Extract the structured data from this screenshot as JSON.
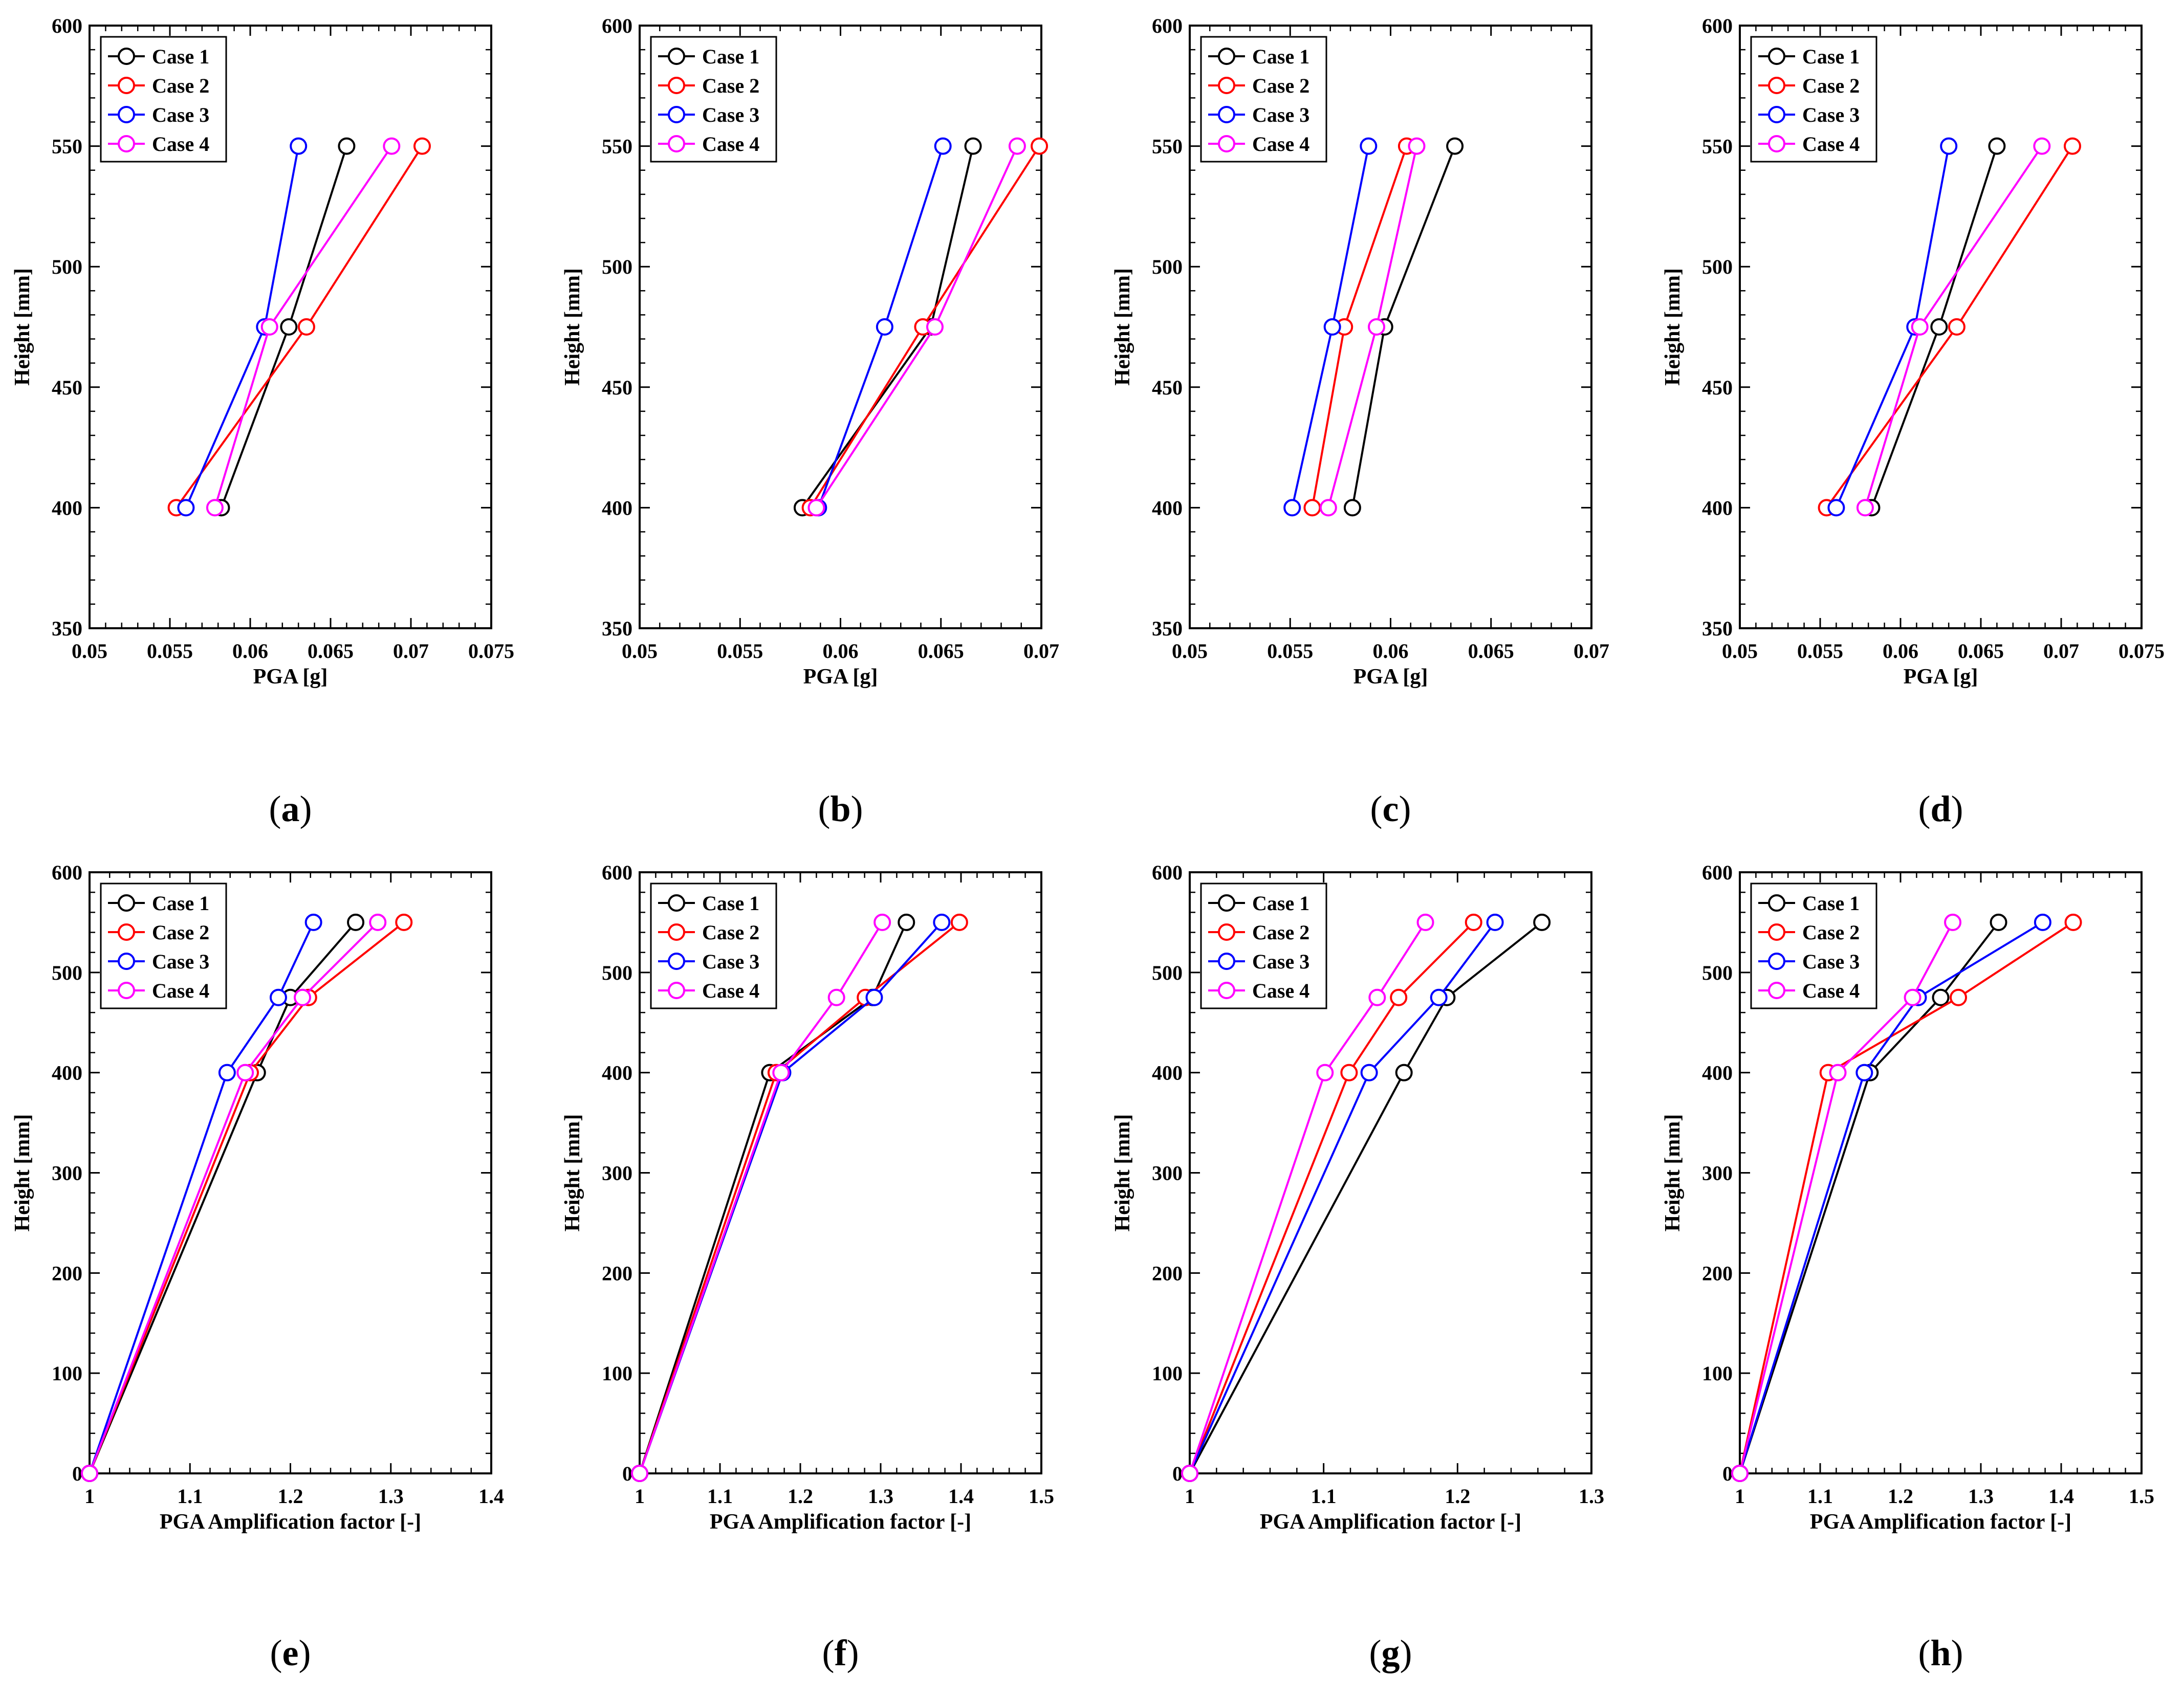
{
  "colors": {
    "case1": "#000000",
    "case2": "#ff0000",
    "case3": "#0000ff",
    "case4": "#ff00ff"
  },
  "chart_data": [
    {
      "panel": "(a)",
      "label_letter": "a",
      "type": "line",
      "xlabel": "PGA [g]",
      "ylabel": "Height [mm]",
      "xlim": [
        0.05,
        0.075
      ],
      "ylim": [
        350,
        600
      ],
      "xticks": [
        0.05,
        0.055,
        0.06,
        0.065,
        0.07,
        0.075
      ],
      "xtick_labels": [
        "0.05",
        "0.055",
        "0.06",
        "0.065",
        "0.07",
        "0.075"
      ],
      "yticks": [
        350,
        400,
        450,
        500,
        550,
        600
      ],
      "ytick_labels": [
        "350",
        "400",
        "450",
        "500",
        "550",
        "600"
      ],
      "legend": "top-left",
      "series": [
        {
          "name": "Case 1",
          "x": [
            0.0582,
            0.0624,
            0.066
          ],
          "y": [
            400,
            475,
            550
          ]
        },
        {
          "name": "Case 2",
          "x": [
            0.0554,
            0.0635,
            0.0707
          ],
          "y": [
            400,
            475,
            550
          ]
        },
        {
          "name": "Case 3",
          "x": [
            0.056,
            0.0609,
            0.063
          ],
          "y": [
            400,
            475,
            550
          ]
        },
        {
          "name": "Case 4",
          "x": [
            0.0578,
            0.0612,
            0.0688
          ],
          "y": [
            400,
            475,
            550
          ]
        }
      ]
    },
    {
      "panel": "(b)",
      "label_letter": "b",
      "type": "line",
      "xlabel": "PGA [g]",
      "ylabel": "Height [mm]",
      "xlim": [
        0.05,
        0.07
      ],
      "ylim": [
        350,
        600
      ],
      "xticks": [
        0.05,
        0.055,
        0.06,
        0.065,
        0.07
      ],
      "xtick_labels": [
        "0.05",
        "0.055",
        "0.06",
        "0.065",
        "0.07"
      ],
      "yticks": [
        350,
        400,
        450,
        500,
        550,
        600
      ],
      "ytick_labels": [
        "350",
        "400",
        "450",
        "500",
        "550",
        "600"
      ],
      "legend": "top-left",
      "series": [
        {
          "name": "Case 1",
          "x": [
            0.0581,
            0.0645,
            0.0666
          ],
          "y": [
            400,
            475,
            550
          ]
        },
        {
          "name": "Case 2",
          "x": [
            0.0585,
            0.0641,
            0.0699
          ],
          "y": [
            400,
            475,
            550
          ]
        },
        {
          "name": "Case 3",
          "x": [
            0.0589,
            0.0622,
            0.0651
          ],
          "y": [
            400,
            475,
            550
          ]
        },
        {
          "name": "Case 4",
          "x": [
            0.0588,
            0.0647,
            0.0688
          ],
          "y": [
            400,
            475,
            550
          ]
        }
      ]
    },
    {
      "panel": "(c)",
      "label_letter": "c",
      "type": "line",
      "xlabel": "PGA [g]",
      "ylabel": "Height [mm]",
      "xlim": [
        0.05,
        0.07
      ],
      "ylim": [
        350,
        600
      ],
      "xticks": [
        0.05,
        0.055,
        0.06,
        0.065,
        0.07
      ],
      "xtick_labels": [
        "0.05",
        "0.055",
        "0.06",
        "0.065",
        "0.07"
      ],
      "yticks": [
        350,
        400,
        450,
        500,
        550,
        600
      ],
      "ytick_labels": [
        "350",
        "400",
        "450",
        "500",
        "550",
        "600"
      ],
      "legend": "top-left",
      "series": [
        {
          "name": "Case 1",
          "x": [
            0.0581,
            0.0597,
            0.0632
          ],
          "y": [
            400,
            475,
            550
          ]
        },
        {
          "name": "Case 2",
          "x": [
            0.0561,
            0.0577,
            0.0608
          ],
          "y": [
            400,
            475,
            550
          ]
        },
        {
          "name": "Case 3",
          "x": [
            0.0551,
            0.0571,
            0.0589
          ],
          "y": [
            400,
            475,
            550
          ]
        },
        {
          "name": "Case 4",
          "x": [
            0.0569,
            0.0593,
            0.0613
          ],
          "y": [
            400,
            475,
            550
          ]
        }
      ]
    },
    {
      "panel": "(d)",
      "label_letter": "d",
      "type": "line",
      "xlabel": "PGA [g]",
      "ylabel": "Height [mm]",
      "xlim": [
        0.05,
        0.075
      ],
      "ylim": [
        350,
        600
      ],
      "xticks": [
        0.05,
        0.055,
        0.06,
        0.065,
        0.07,
        0.075
      ],
      "xtick_labels": [
        "0.05",
        "0.055",
        "0.06",
        "0.065",
        "0.07",
        "0.075"
      ],
      "yticks": [
        350,
        400,
        450,
        500,
        550,
        600
      ],
      "ytick_labels": [
        "350",
        "400",
        "450",
        "500",
        "550",
        "600"
      ],
      "legend": "top-left",
      "series": [
        {
          "name": "Case 1",
          "x": [
            0.0582,
            0.0624,
            0.066
          ],
          "y": [
            400,
            475,
            550
          ]
        },
        {
          "name": "Case 2",
          "x": [
            0.0554,
            0.0635,
            0.0707
          ],
          "y": [
            400,
            475,
            550
          ]
        },
        {
          "name": "Case 3",
          "x": [
            0.056,
            0.0609,
            0.063
          ],
          "y": [
            400,
            475,
            550
          ]
        },
        {
          "name": "Case 4",
          "x": [
            0.0578,
            0.0612,
            0.0688
          ],
          "y": [
            400,
            475,
            550
          ]
        }
      ]
    },
    {
      "panel": "(e)",
      "label_letter": "e",
      "type": "line",
      "xlabel": "PGA Amplification factor [-]",
      "ylabel": "Height [mm]",
      "xlim": [
        1,
        1.4
      ],
      "ylim": [
        0,
        600
      ],
      "xticks": [
        1,
        1.1,
        1.2,
        1.3,
        1.4
      ],
      "xtick_labels": [
        "1",
        "1.1",
        "1.2",
        "1.3",
        "1.4"
      ],
      "yticks": [
        0,
        100,
        200,
        300,
        400,
        500,
        600
      ],
      "ytick_labels": [
        "0",
        "100",
        "200",
        "300",
        "400",
        "500",
        "600"
      ],
      "legend": "top-left",
      "series": [
        {
          "name": "Case 1",
          "x": [
            1.0,
            1.167,
            1.2,
            1.265
          ],
          "y": [
            0,
            400,
            475,
            550
          ]
        },
        {
          "name": "Case 2",
          "x": [
            1.0,
            1.16,
            1.218,
            1.313
          ],
          "y": [
            0,
            400,
            475,
            550
          ]
        },
        {
          "name": "Case 3",
          "x": [
            1.0,
            1.137,
            1.188,
            1.223
          ],
          "y": [
            0,
            400,
            475,
            550
          ]
        },
        {
          "name": "Case 4",
          "x": [
            1.0,
            1.155,
            1.212,
            1.287
          ],
          "y": [
            0,
            400,
            475,
            550
          ]
        }
      ]
    },
    {
      "panel": "(f)",
      "label_letter": "f",
      "type": "line",
      "xlabel": "PGA Amplification factor [-]",
      "ylabel": "Height [mm]",
      "xlim": [
        1,
        1.5
      ],
      "ylim": [
        0,
        600
      ],
      "xticks": [
        1,
        1.1,
        1.2,
        1.3,
        1.4,
        1.5
      ],
      "xtick_labels": [
        "1",
        "1.1",
        "1.2",
        "1.3",
        "1.4",
        "1.5"
      ],
      "yticks": [
        0,
        100,
        200,
        300,
        400,
        500,
        600
      ],
      "ytick_labels": [
        "0",
        "100",
        "200",
        "300",
        "400",
        "500",
        "600"
      ],
      "legend": "top-left",
      "series": [
        {
          "name": "Case 1",
          "x": [
            1.0,
            1.162,
            1.29,
            1.332
          ],
          "y": [
            0,
            400,
            475,
            550
          ]
        },
        {
          "name": "Case 2",
          "x": [
            1.0,
            1.17,
            1.281,
            1.398
          ],
          "y": [
            0,
            400,
            475,
            550
          ]
        },
        {
          "name": "Case 3",
          "x": [
            1.0,
            1.178,
            1.292,
            1.376
          ],
          "y": [
            0,
            400,
            475,
            550
          ]
        },
        {
          "name": "Case 4",
          "x": [
            1.0,
            1.176,
            1.245,
            1.302
          ],
          "y": [
            0,
            400,
            475,
            550
          ]
        }
      ]
    },
    {
      "panel": "(g)",
      "label_letter": "g",
      "type": "line",
      "xlabel": "PGA Amplification factor [-]",
      "ylabel": "Height [mm]",
      "xlim": [
        1,
        1.3
      ],
      "ylim": [
        0,
        600
      ],
      "xticks": [
        1,
        1.1,
        1.2,
        1.3
      ],
      "xtick_labels": [
        "1",
        "1.1",
        "1.2",
        "1.3"
      ],
      "yticks": [
        0,
        100,
        200,
        300,
        400,
        500,
        600
      ],
      "ytick_labels": [
        "0",
        "100",
        "200",
        "300",
        "400",
        "500",
        "600"
      ],
      "legend": "top-left",
      "series": [
        {
          "name": "Case 1",
          "x": [
            1.0,
            1.16,
            1.192,
            1.263
          ],
          "y": [
            0,
            400,
            475,
            550
          ]
        },
        {
          "name": "Case 2",
          "x": [
            1.0,
            1.119,
            1.156,
            1.212
          ],
          "y": [
            0,
            400,
            475,
            550
          ]
        },
        {
          "name": "Case 3",
          "x": [
            1.0,
            1.134,
            1.186,
            1.228
          ],
          "y": [
            0,
            400,
            475,
            550
          ]
        },
        {
          "name": "Case 4",
          "x": [
            1.0,
            1.101,
            1.14,
            1.176
          ],
          "y": [
            0,
            400,
            475,
            550
          ]
        }
      ]
    },
    {
      "panel": "(h)",
      "label_letter": "h",
      "type": "line",
      "xlabel": "PGA Amplification factor [-]",
      "ylabel": "Height [mm]",
      "xlim": [
        1,
        1.5
      ],
      "ylim": [
        0,
        600
      ],
      "xticks": [
        1,
        1.1,
        1.2,
        1.3,
        1.4,
        1.5
      ],
      "xtick_labels": [
        "1",
        "1.1",
        "1.2",
        "1.3",
        "1.4",
        "1.5"
      ],
      "yticks": [
        0,
        100,
        200,
        300,
        400,
        500,
        600
      ],
      "ytick_labels": [
        "0",
        "100",
        "200",
        "300",
        "400",
        "500",
        "600"
      ],
      "legend": "top-left",
      "series": [
        {
          "name": "Case 1",
          "x": [
            1.0,
            1.162,
            1.25,
            1.322
          ],
          "y": [
            0,
            400,
            475,
            550
          ]
        },
        {
          "name": "Case 2",
          "x": [
            1.0,
            1.11,
            1.272,
            1.415
          ],
          "y": [
            0,
            400,
            475,
            550
          ]
        },
        {
          "name": "Case 3",
          "x": [
            1.0,
            1.155,
            1.222,
            1.377
          ],
          "y": [
            0,
            400,
            475,
            550
          ]
        },
        {
          "name": "Case 4",
          "x": [
            1.0,
            1.122,
            1.215,
            1.265
          ],
          "y": [
            0,
            400,
            475,
            550
          ]
        }
      ]
    }
  ]
}
